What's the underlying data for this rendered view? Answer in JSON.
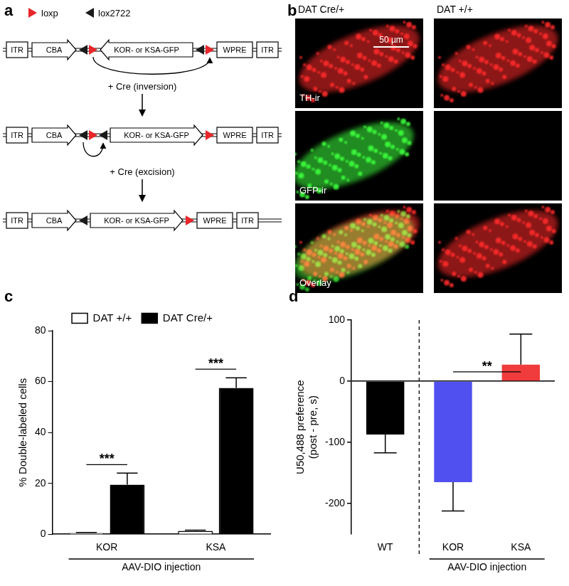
{
  "panel_a": {
    "label": "a",
    "legend": [
      {
        "name": "loxp",
        "color": "#e8262b"
      },
      {
        "name": "lox2722",
        "color": "#1a1a1a"
      }
    ],
    "elements": [
      "ITR",
      "CBA",
      "KOR- or KSA-GFP",
      "WPRE",
      "ITR"
    ],
    "steps": [
      "+ Cre (inversion)",
      "+ Cre (excision)"
    ]
  },
  "panel_b": {
    "label": "b",
    "columns": [
      "DAT Cre/+",
      "DAT +/+"
    ],
    "rows": [
      "TH-ir",
      "GFP-ir",
      "Overlay"
    ],
    "scale_bar": "50 µm"
  },
  "chart_data": [
    {
      "panel_label": "c",
      "type": "bar",
      "categories": [
        "KOR",
        "KSA"
      ],
      "category_group": {
        "label": "AAV-DIO injection",
        "categories": [
          "KOR",
          "KSA"
        ]
      },
      "y_label": "% Double-labeled cells",
      "ylim": [
        0,
        80
      ],
      "yticks": [
        0,
        20,
        40,
        60,
        80
      ],
      "legend": "top",
      "series": [
        {
          "name": "DAT +/+",
          "color": "#ffffff",
          "values": [
            0.5,
            1.3
          ],
          "errors": [
            0.2,
            0.3
          ]
        },
        {
          "name": "DAT Cre/+",
          "color": "#000000",
          "values": [
            19.5,
            57.5
          ],
          "errors": [
            4.5,
            4
          ]
        }
      ],
      "annotations": [
        {
          "text": "***",
          "category": "KOR"
        },
        {
          "text": "***",
          "category": "KSA"
        }
      ]
    },
    {
      "panel_label": "d",
      "type": "bar",
      "categories": [
        "WT",
        "KOR",
        "KSA"
      ],
      "category_group": {
        "label": "AAV-DIO injection",
        "categories": [
          "KOR",
          "KSA"
        ]
      },
      "values": [
        -87,
        -165,
        27
      ],
      "errors": [
        30,
        47,
        50
      ],
      "colors": [
        "#000000",
        "#5050f0",
        "#f03c3c"
      ],
      "y_label": [
        "U50,488 preference",
        "(post - pre, s)"
      ],
      "ylim": [
        -250,
        100
      ],
      "yticks": [
        -200,
        -100,
        0,
        100
      ],
      "annotations": [
        {
          "text": "**",
          "between": [
            "KOR",
            "KSA"
          ]
        }
      ]
    }
  ]
}
